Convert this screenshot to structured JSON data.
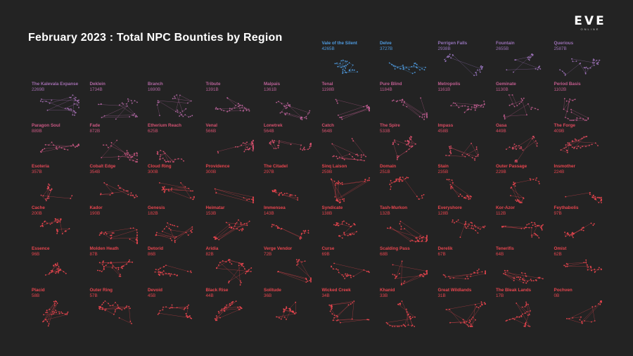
{
  "title": "February 2023 : Total NPC Bounties by Region",
  "logo": {
    "word": "EVE",
    "sub": "ONLINE"
  },
  "colors": {
    "background": "#232323",
    "blue": "#4f9be0",
    "purple": "#8e78c4",
    "pink": "#c85a8a",
    "red": "#e8454e"
  },
  "chart_data": {
    "type": "small-multiples",
    "title": "February 2023 : Total NPC Bounties by Region",
    "unit": "B",
    "regions": [
      {
        "name": "Vale of the Silent",
        "value": 4265,
        "label": "4265B"
      },
      {
        "name": "Delve",
        "value": 3727,
        "label": "3727B"
      },
      {
        "name": "Perrigen Falls",
        "value": 2938,
        "label": "2938B"
      },
      {
        "name": "Fountain",
        "value": 2655,
        "label": "2655B"
      },
      {
        "name": "Querious",
        "value": 2587,
        "label": "2587B"
      },
      {
        "name": "The Kalevala Expanse",
        "value": 2269,
        "label": "2269B"
      },
      {
        "name": "Deklein",
        "value": 1734,
        "label": "1734B"
      },
      {
        "name": "Branch",
        "value": 1690,
        "label": "1690B"
      },
      {
        "name": "Tribute",
        "value": 1391,
        "label": "1391B"
      },
      {
        "name": "Malpais",
        "value": 1361,
        "label": "1361B"
      },
      {
        "name": "Tenal",
        "value": 1198,
        "label": "1198B"
      },
      {
        "name": "Pure Blind",
        "value": 1184,
        "label": "1184B"
      },
      {
        "name": "Metropolis",
        "value": 1161,
        "label": "1161B"
      },
      {
        "name": "Geminate",
        "value": 1130,
        "label": "1130B"
      },
      {
        "name": "Period Basis",
        "value": 1102,
        "label": "1102B"
      },
      {
        "name": "Paragon Soul",
        "value": 889,
        "label": "889B"
      },
      {
        "name": "Fade",
        "value": 872,
        "label": "872B"
      },
      {
        "name": "Etherium Reach",
        "value": 625,
        "label": "625B"
      },
      {
        "name": "Venal",
        "value": 566,
        "label": "566B"
      },
      {
        "name": "Lonetrek",
        "value": 564,
        "label": "564B"
      },
      {
        "name": "Catch",
        "value": 564,
        "label": "564B"
      },
      {
        "name": "The Spire",
        "value": 533,
        "label": "533B"
      },
      {
        "name": "Impass",
        "value": 458,
        "label": "458B"
      },
      {
        "name": "Oasa",
        "value": 449,
        "label": "449B"
      },
      {
        "name": "The Forge",
        "value": 409,
        "label": "409B"
      },
      {
        "name": "Esoteria",
        "value": 357,
        "label": "357B"
      },
      {
        "name": "Cobalt Edge",
        "value": 354,
        "label": "354B"
      },
      {
        "name": "Cloud Ring",
        "value": 300,
        "label": "300B"
      },
      {
        "name": "Providence",
        "value": 300,
        "label": "300B"
      },
      {
        "name": "The Citadel",
        "value": 297,
        "label": "297B"
      },
      {
        "name": "Sinq Laison",
        "value": 259,
        "label": "259B"
      },
      {
        "name": "Domain",
        "value": 251,
        "label": "251B"
      },
      {
        "name": "Stain",
        "value": 235,
        "label": "235B"
      },
      {
        "name": "Outer Passage",
        "value": 229,
        "label": "229B"
      },
      {
        "name": "Insmother",
        "value": 224,
        "label": "224B"
      },
      {
        "name": "Cache",
        "value": 200,
        "label": "200B"
      },
      {
        "name": "Kador",
        "value": 190,
        "label": "190B"
      },
      {
        "name": "Genesis",
        "value": 182,
        "label": "182B"
      },
      {
        "name": "Heimatar",
        "value": 153,
        "label": "153B"
      },
      {
        "name": "Immensea",
        "value": 143,
        "label": "143B"
      },
      {
        "name": "Syndicate",
        "value": 138,
        "label": "138B"
      },
      {
        "name": "Tash-Murkon",
        "value": 132,
        "label": "132B"
      },
      {
        "name": "Everyshore",
        "value": 128,
        "label": "128B"
      },
      {
        "name": "Kor-Azor",
        "value": 112,
        "label": "112B"
      },
      {
        "name": "Feythabolis",
        "value": 97,
        "label": "97B"
      },
      {
        "name": "Essence",
        "value": 96,
        "label": "96B"
      },
      {
        "name": "Molden Heath",
        "value": 87,
        "label": "87B"
      },
      {
        "name": "Detorid",
        "value": 86,
        "label": "86B"
      },
      {
        "name": "Aridia",
        "value": 82,
        "label": "82B"
      },
      {
        "name": "Verge Vendor",
        "value": 72,
        "label": "72B"
      },
      {
        "name": "Curse",
        "value": 69,
        "label": "69B"
      },
      {
        "name": "Scalding Pass",
        "value": 68,
        "label": "68B"
      },
      {
        "name": "Derelik",
        "value": 67,
        "label": "67B"
      },
      {
        "name": "Tenerifis",
        "value": 64,
        "label": "64B"
      },
      {
        "name": "Omist",
        "value": 62,
        "label": "62B"
      },
      {
        "name": "Placid",
        "value": 58,
        "label": "58B"
      },
      {
        "name": "Outer Ring",
        "value": 57,
        "label": "57B"
      },
      {
        "name": "Devoid",
        "value": 45,
        "label": "45B"
      },
      {
        "name": "Black Rise",
        "value": 44,
        "label": "44B"
      },
      {
        "name": "Solitude",
        "value": 36,
        "label": "36B"
      },
      {
        "name": "Wicked Creek",
        "value": 34,
        "label": "34B"
      },
      {
        "name": "Khanid",
        "value": 33,
        "label": "33B"
      },
      {
        "name": "Great Wildlands",
        "value": 31,
        "label": "31B"
      },
      {
        "name": "The Bleak Lands",
        "value": 17,
        "label": "17B"
      },
      {
        "name": "Pochven",
        "value": 0,
        "label": "0B"
      }
    ]
  }
}
